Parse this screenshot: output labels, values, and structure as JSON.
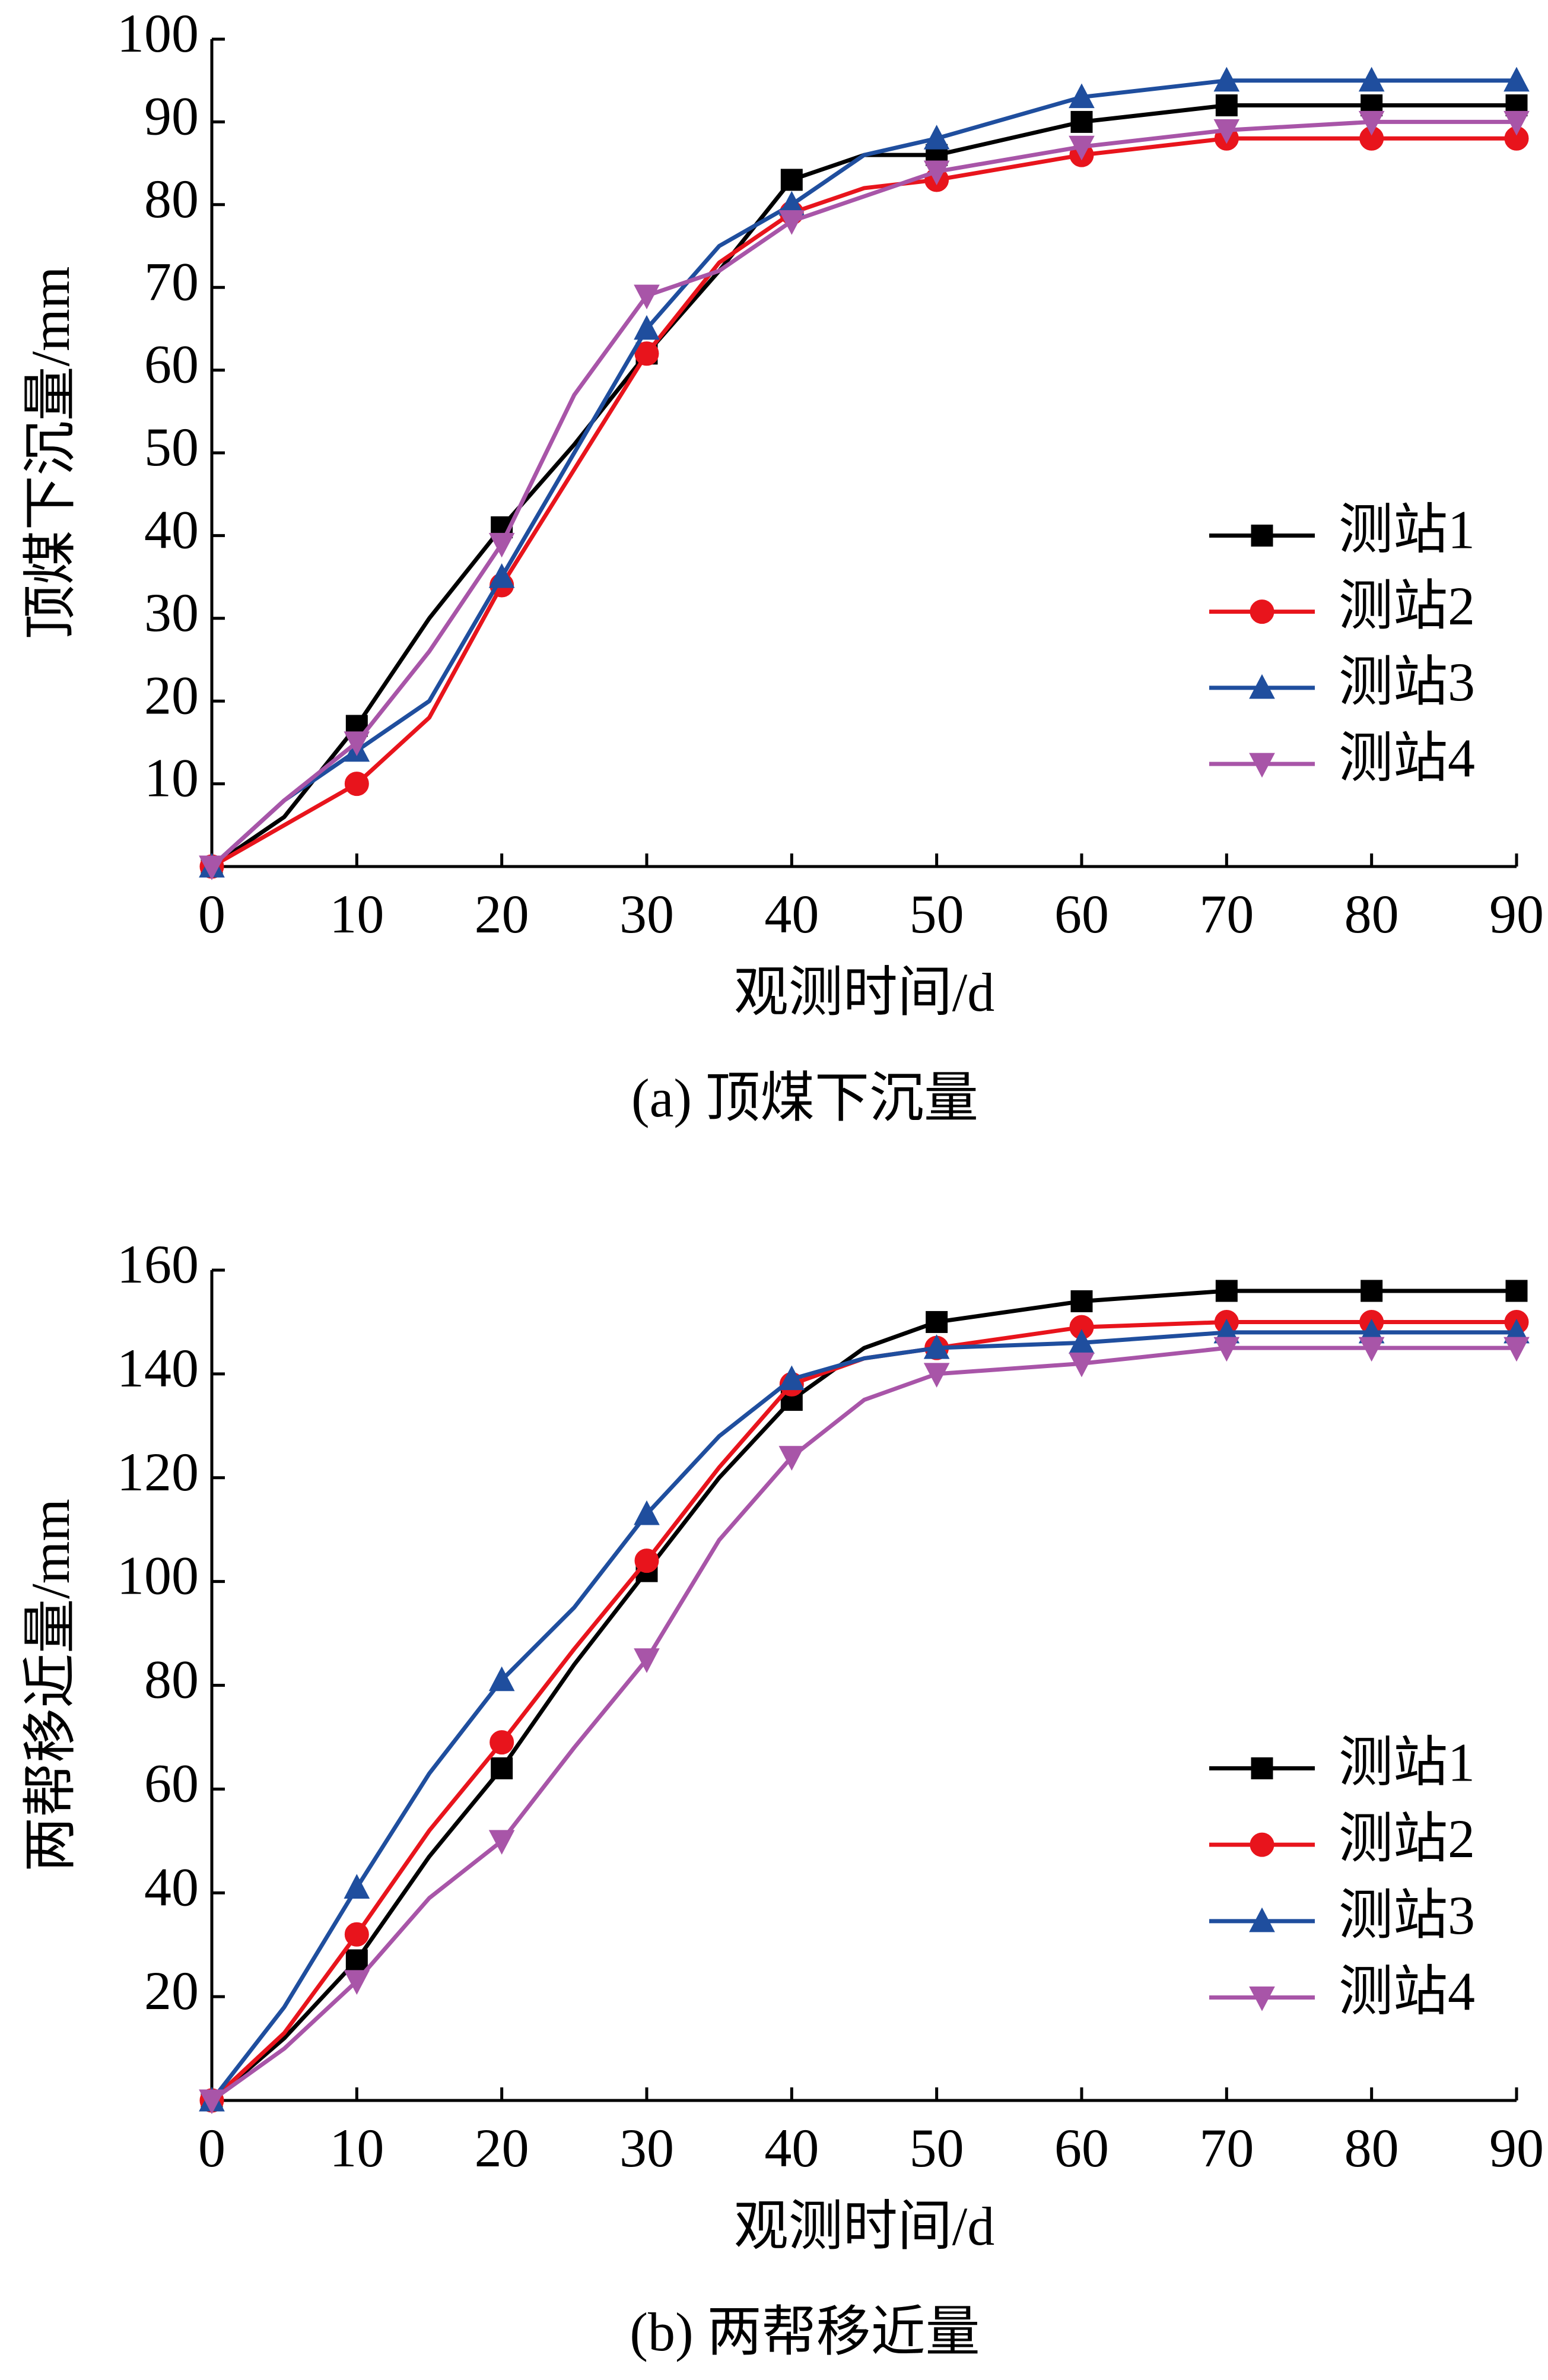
{
  "chart_data": [
    {
      "type": "line",
      "caption": "(a)  顶煤下沉量",
      "x_label": "观测时间/d",
      "y_label": "顶煤下沉量/mm",
      "x": [
        0,
        5,
        10,
        15,
        20,
        25,
        30,
        35,
        40,
        45,
        50,
        60,
        70,
        80,
        90
      ],
      "xlim": [
        0,
        90
      ],
      "xticks": [
        0,
        10,
        20,
        30,
        40,
        50,
        60,
        70,
        80,
        90
      ],
      "ylim": [
        0,
        100
      ],
      "yticks": [
        10,
        20,
        30,
        40,
        50,
        60,
        70,
        80,
        90,
        100
      ],
      "legend": "right",
      "series": [
        {
          "name": "测站1",
          "color": "#000000",
          "marker": "square",
          "values": [
            0,
            6,
            17,
            30,
            41,
            51,
            62,
            72,
            83,
            86,
            86,
            90,
            92,
            92,
            92
          ]
        },
        {
          "name": "测站2",
          "color": "#e8141c",
          "marker": "circle",
          "values": [
            0,
            5,
            10,
            18,
            34,
            48,
            62,
            73,
            79,
            82,
            83,
            86,
            88,
            88,
            88
          ]
        },
        {
          "name": "测站3",
          "color": "#1f4e9e",
          "marker": "triangle-up",
          "values": [
            0,
            8,
            14,
            20,
            35,
            50,
            65,
            75,
            80,
            86,
            88,
            93,
            95,
            95,
            95
          ]
        },
        {
          "name": "测站4",
          "color": "#a855a8",
          "marker": "triangle-down",
          "values": [
            0,
            8,
            15,
            26,
            39,
            57,
            69,
            72,
            78,
            81,
            84,
            87,
            89,
            90,
            90
          ]
        }
      ]
    },
    {
      "type": "line",
      "caption": "(b)  两帮移近量",
      "x_label": "观测时间/d",
      "y_label": "两帮移近量/mm",
      "x": [
        0,
        5,
        10,
        15,
        20,
        25,
        30,
        35,
        40,
        45,
        50,
        60,
        70,
        80,
        90
      ],
      "xlim": [
        0,
        90
      ],
      "xticks": [
        0,
        10,
        20,
        30,
        40,
        50,
        60,
        70,
        80,
        90
      ],
      "ylim": [
        0,
        160
      ],
      "yticks": [
        20,
        40,
        60,
        80,
        100,
        120,
        140,
        160
      ],
      "legend": "right",
      "series": [
        {
          "name": "测站1",
          "color": "#000000",
          "marker": "square",
          "values": [
            0,
            12,
            27,
            47,
            64,
            84,
            102,
            120,
            135,
            145,
            150,
            154,
            156,
            156,
            156
          ]
        },
        {
          "name": "测站2",
          "color": "#e8141c",
          "marker": "circle",
          "values": [
            0,
            13,
            32,
            52,
            69,
            87,
            104,
            122,
            138,
            143,
            145,
            149,
            150,
            150,
            150
          ]
        },
        {
          "name": "测站3",
          "color": "#1f4e9e",
          "marker": "triangle-up",
          "values": [
            0,
            18,
            41,
            63,
            81,
            95,
            113,
            128,
            139,
            143,
            145,
            146,
            148,
            148,
            148
          ]
        },
        {
          "name": "测站4",
          "color": "#a855a8",
          "marker": "triangle-down",
          "values": [
            0,
            10,
            23,
            39,
            50,
            68,
            85,
            108,
            124,
            135,
            140,
            142,
            145,
            145,
            145
          ]
        }
      ]
    }
  ]
}
